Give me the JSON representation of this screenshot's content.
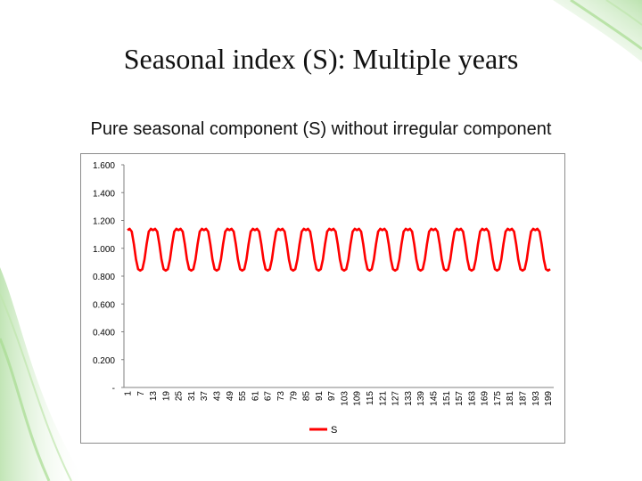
{
  "slide": {
    "title": "Seasonal index (S): Multiple years",
    "subtitle": "Pure seasonal component (S) without irregular component"
  },
  "colors": {
    "series": "#ff0000",
    "decor_green": "#9fd98a"
  },
  "chart_data": {
    "type": "line",
    "title": "",
    "xlabel": "",
    "ylabel": "",
    "x_range": [
      1,
      200
    ],
    "x_tick_labels": [
      "1",
      "7",
      "13",
      "19",
      "25",
      "31",
      "37",
      "43",
      "49",
      "55",
      "61",
      "67",
      "73",
      "79",
      "85",
      "91",
      "97",
      "103",
      "109",
      "115",
      "121",
      "127",
      "133",
      "139",
      "145",
      "151",
      "157",
      "163",
      "169",
      "175",
      "181",
      "187",
      "193",
      "199"
    ],
    "y_tick_labels": [
      "-",
      "0.200",
      "0.400",
      "0.600",
      "0.800",
      "1.000",
      "1.200",
      "1.400",
      "1.600"
    ],
    "ylim": [
      0,
      1.6
    ],
    "grid": false,
    "legend_position": "bottom",
    "series": [
      {
        "name": "S",
        "color": "#ff0000",
        "period": 12,
        "values": [
          1.13,
          1.14,
          1.12,
          1.03,
          0.92,
          0.85,
          0.84,
          0.85,
          0.92,
          1.03,
          1.12,
          1.14,
          1.13,
          1.14,
          1.12,
          1.03,
          0.92,
          0.85,
          0.84,
          0.85,
          0.92,
          1.03,
          1.12,
          1.14,
          1.13,
          1.14,
          1.12,
          1.03,
          0.92,
          0.85,
          0.84,
          0.85,
          0.92,
          1.03,
          1.12,
          1.14,
          1.13,
          1.14,
          1.12,
          1.03,
          0.92,
          0.85,
          0.84,
          0.85,
          0.92,
          1.03,
          1.12,
          1.14,
          1.13,
          1.14,
          1.12,
          1.03,
          0.92,
          0.85,
          0.84,
          0.85,
          0.92,
          1.03,
          1.12,
          1.14,
          1.13,
          1.14,
          1.12,
          1.03,
          0.92,
          0.85,
          0.84,
          0.85,
          0.92,
          1.03,
          1.12,
          1.14,
          1.13,
          1.14,
          1.12,
          1.03,
          0.92,
          0.85,
          0.84,
          0.85,
          0.92,
          1.03,
          1.12,
          1.14,
          1.13,
          1.14,
          1.12,
          1.03,
          0.92,
          0.85,
          0.84,
          0.85,
          0.92,
          1.03,
          1.12,
          1.14,
          1.13,
          1.14,
          1.12,
          1.03,
          0.92,
          0.85,
          0.84,
          0.85,
          0.92,
          1.03,
          1.12,
          1.14,
          1.13,
          1.14,
          1.12,
          1.03,
          0.92,
          0.85,
          0.84,
          0.85,
          0.92,
          1.03,
          1.12,
          1.14,
          1.13,
          1.14,
          1.12,
          1.03,
          0.92,
          0.85,
          0.84,
          0.85,
          0.92,
          1.03,
          1.12,
          1.14,
          1.13,
          1.14,
          1.12,
          1.03,
          0.92,
          0.85,
          0.84,
          0.85,
          0.92,
          1.03,
          1.12,
          1.14,
          1.13,
          1.14,
          1.12,
          1.03,
          0.92,
          0.85,
          0.84,
          0.85,
          0.92,
          1.03,
          1.12,
          1.14,
          1.13,
          1.14,
          1.12,
          1.03,
          0.92,
          0.85,
          0.84,
          0.85,
          0.92,
          1.03,
          1.12,
          1.14,
          1.13,
          1.14,
          1.12,
          1.03,
          0.92,
          0.85,
          0.84,
          0.85,
          0.92,
          1.03,
          1.12,
          1.14,
          1.13,
          1.14,
          1.12,
          1.03,
          0.92,
          0.85,
          0.84,
          0.85,
          0.92,
          1.03,
          1.12,
          1.14,
          1.13,
          1.14,
          1.12,
          1.03,
          0.92,
          0.85,
          0.84,
          0.85
        ]
      }
    ]
  }
}
